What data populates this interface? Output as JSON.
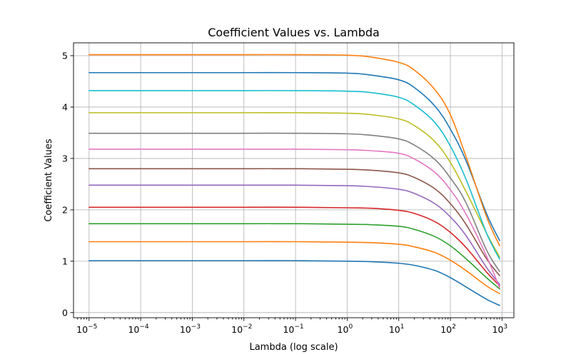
{
  "chart_data": {
    "type": "line",
    "title": "Coefficient Values vs. Lambda",
    "xlabel": "Lambda (log scale)",
    "ylabel": "Coefficient Values",
    "xscale": "log",
    "xlim": [
      5e-06,
      1700
    ],
    "ylim": [
      -0.1,
      5.25
    ],
    "grid": true,
    "xticks": [
      {
        "base": "10",
        "exp": "−5"
      },
      {
        "base": "10",
        "exp": "−4"
      },
      {
        "base": "10",
        "exp": "−3"
      },
      {
        "base": "10",
        "exp": "−2"
      },
      {
        "base": "10",
        "exp": "−1"
      },
      {
        "base": "10",
        "exp": "0"
      },
      {
        "base": "10",
        "exp": "1"
      },
      {
        "base": "10",
        "exp": "2"
      },
      {
        "base": "10",
        "exp": "3"
      }
    ],
    "yticks": [
      "0",
      "1",
      "2",
      "3",
      "4",
      "5"
    ],
    "x": [
      1e-05,
      0.0001,
      0.001,
      0.01,
      0.1,
      1,
      3,
      10,
      20,
      50,
      100,
      200,
      500,
      900
    ],
    "series": [
      {
        "color": "#1f77b4",
        "values": [
          1.01,
          1.01,
          1.01,
          1.01,
          1.01,
          1.0,
          0.99,
          0.96,
          0.92,
          0.82,
          0.68,
          0.5,
          0.26,
          0.14
        ]
      },
      {
        "color": "#ff7f0e",
        "values": [
          1.38,
          1.38,
          1.38,
          1.38,
          1.38,
          1.37,
          1.36,
          1.33,
          1.28,
          1.17,
          1.02,
          0.82,
          0.52,
          0.37
        ]
      },
      {
        "color": "#2ca02c",
        "values": [
          1.73,
          1.73,
          1.73,
          1.73,
          1.73,
          1.72,
          1.71,
          1.68,
          1.62,
          1.48,
          1.3,
          1.05,
          0.68,
          0.46
        ]
      },
      {
        "color": "#d62728",
        "values": [
          2.05,
          2.05,
          2.05,
          2.05,
          2.05,
          2.04,
          2.03,
          1.99,
          1.93,
          1.77,
          1.56,
          1.27,
          0.79,
          0.52
        ]
      },
      {
        "color": "#9467bd",
        "values": [
          2.48,
          2.48,
          2.48,
          2.48,
          2.48,
          2.47,
          2.45,
          2.4,
          2.32,
          2.12,
          1.86,
          1.5,
          0.88,
          0.55
        ]
      },
      {
        "color": "#8c564b",
        "values": [
          2.8,
          2.8,
          2.8,
          2.8,
          2.8,
          2.79,
          2.77,
          2.72,
          2.63,
          2.41,
          2.12,
          1.72,
          1.05,
          0.72
        ]
      },
      {
        "color": "#e377c2",
        "values": [
          3.18,
          3.18,
          3.18,
          3.18,
          3.18,
          3.17,
          3.15,
          3.1,
          2.99,
          2.73,
          2.39,
          1.92,
          1.1,
          0.48
        ]
      },
      {
        "color": "#7f7f7f",
        "values": [
          3.49,
          3.49,
          3.49,
          3.49,
          3.49,
          3.48,
          3.45,
          3.38,
          3.26,
          2.98,
          2.62,
          2.14,
          1.22,
          0.8
        ]
      },
      {
        "color": "#bcbd22",
        "values": [
          3.89,
          3.89,
          3.89,
          3.89,
          3.89,
          3.88,
          3.85,
          3.77,
          3.64,
          3.33,
          2.92,
          2.36,
          1.55,
          1.08
        ]
      },
      {
        "color": "#17becf",
        "values": [
          4.32,
          4.32,
          4.32,
          4.32,
          4.32,
          4.31,
          4.28,
          4.19,
          4.04,
          3.7,
          3.24,
          2.6,
          1.55,
          1.04
        ]
      },
      {
        "color": "#1f77b4",
        "values": [
          4.67,
          4.67,
          4.67,
          4.67,
          4.67,
          4.66,
          4.62,
          4.53,
          4.38,
          4.02,
          3.57,
          2.96,
          1.93,
          1.4
        ]
      },
      {
        "color": "#ff7f0e",
        "values": [
          5.02,
          5.02,
          5.02,
          5.02,
          5.02,
          5.01,
          4.97,
          4.87,
          4.72,
          4.34,
          3.85,
          3.04,
          1.87,
          1.3
        ]
      }
    ]
  }
}
